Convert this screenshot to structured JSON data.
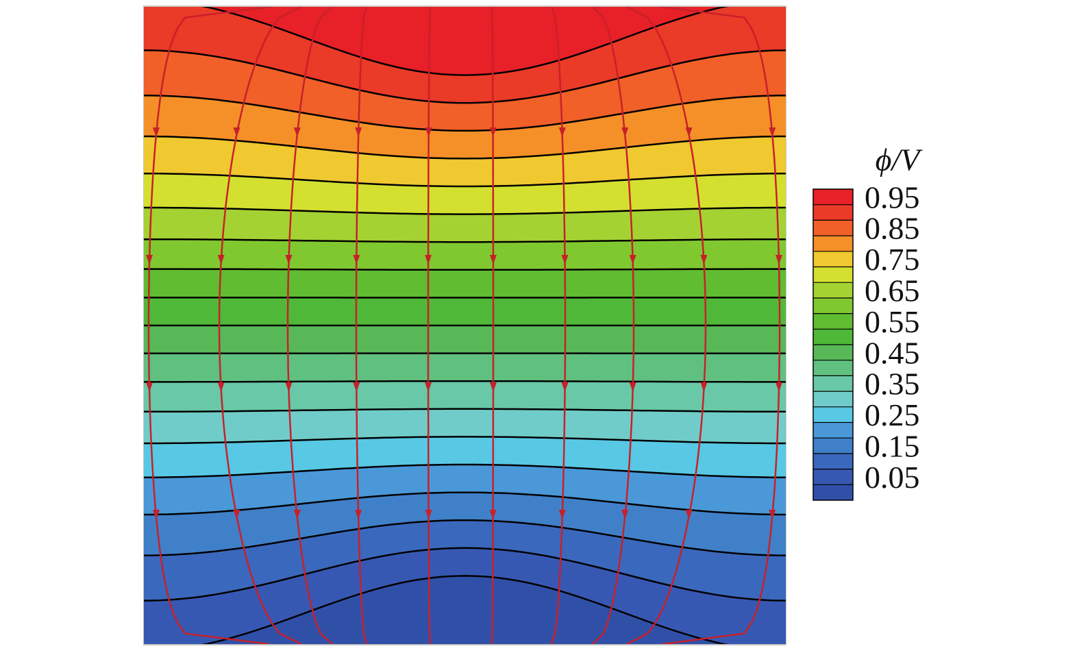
{
  "chart_data": {
    "type": "contour",
    "colorbar_label": "ϕ/V",
    "clim": [
      0,
      1
    ],
    "levels": [
      0.05,
      0.1,
      0.15,
      0.2,
      0.25,
      0.3,
      0.35,
      0.4,
      0.45,
      0.5,
      0.55,
      0.6,
      0.65,
      0.7,
      0.75,
      0.8,
      0.85,
      0.9,
      0.95
    ],
    "colors": [
      "#3050a8",
      "#3758b2",
      "#3a68bc",
      "#4080c8",
      "#4a98d8",
      "#58c8e4",
      "#70ccc8",
      "#68c8a8",
      "#60c080",
      "#58b858",
      "#50b838",
      "#60bc30",
      "#80c830",
      "#a4d232",
      "#d4e030",
      "#f0c830",
      "#f59028",
      "#f06028",
      "#ea3a28",
      "#e82028"
    ],
    "colorbar_ticks": [
      0.05,
      0.15,
      0.25,
      0.35,
      0.45,
      0.55,
      0.65,
      0.75,
      0.85,
      0.95
    ]
  }
}
